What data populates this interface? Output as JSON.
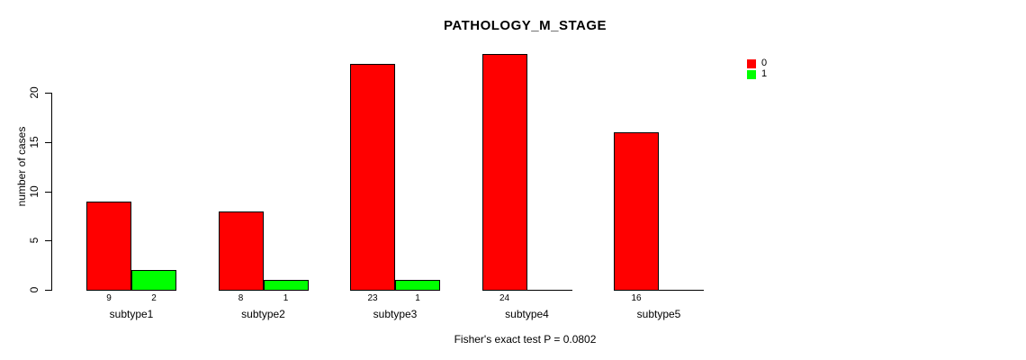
{
  "chart_data": {
    "type": "bar",
    "title": "PATHOLOGY_M_STAGE",
    "xlabel": "",
    "ylabel": "number of cases",
    "footer": "Fisher's exact test P = 0.0802",
    "categories": [
      "subtype1",
      "subtype2",
      "subtype3",
      "subtype4",
      "subtype5"
    ],
    "series": [
      {
        "name": "0",
        "color": "#ff0000",
        "values": [
          9,
          8,
          23,
          24,
          16
        ]
      },
      {
        "name": "1",
        "color": "#00ff00",
        "values": [
          2,
          1,
          1,
          0,
          0
        ]
      }
    ],
    "yticks": [
      0,
      5,
      10,
      15,
      20
    ],
    "ylim": [
      0,
      24
    ],
    "grid": false,
    "legend_position": "right",
    "bar_value_labels_shown": true,
    "zero_value_labels_hidden": true,
    "bar_border_color": "#000000",
    "background_color": "#ffffff"
  }
}
